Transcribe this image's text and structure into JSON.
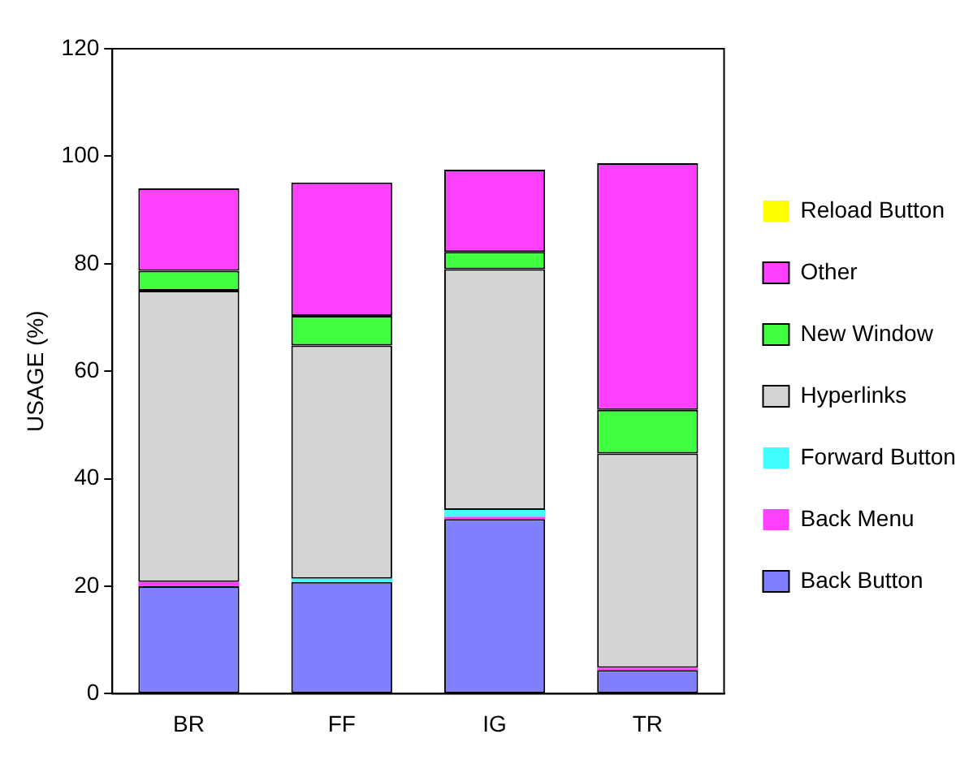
{
  "chart_data": {
    "type": "bar",
    "stacked": true,
    "ylabel": "USAGE (%)",
    "categories": [
      "BR",
      "FF",
      "IG",
      "TR"
    ],
    "series": [
      {
        "name": "Back Button",
        "color": "#8080ff",
        "values": [
          20,
          20.8,
          32.5,
          4.4
        ]
      },
      {
        "name": "Back Menu",
        "color": "#ff40ff",
        "values": [
          0.8,
          0,
          0.4,
          0.4
        ]
      },
      {
        "name": "Forward Button",
        "color": "#40ffff",
        "values": [
          0,
          0.6,
          1.3,
          0
        ]
      },
      {
        "name": "Hyperlinks",
        "color": "#d4d4d4",
        "values": [
          54.2,
          43.4,
          44.8,
          39.9
        ]
      },
      {
        "name": "New Window",
        "color": "#40ff40",
        "values": [
          3.7,
          5.5,
          3.2,
          8.1
        ]
      },
      {
        "name": "Other",
        "color": "#ff40ff",
        "values": [
          15.3,
          24.8,
          15.3,
          45.9
        ]
      },
      {
        "name": "Reload Button",
        "color": "#ffff00",
        "values": [
          0,
          0,
          0,
          0
        ]
      }
    ],
    "ylim": [
      0,
      120
    ],
    "yticks": [
      0,
      20,
      40,
      60,
      80,
      100,
      120
    ],
    "grid": false,
    "legend": "right"
  }
}
